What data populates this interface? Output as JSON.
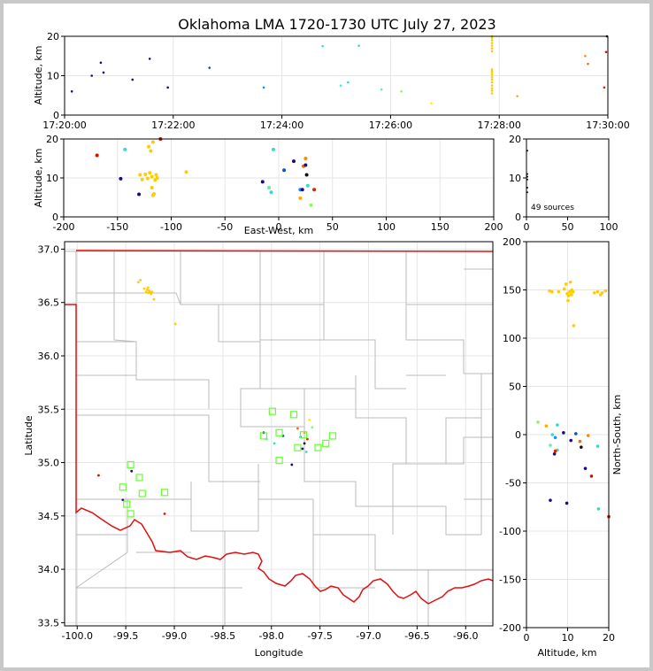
{
  "title": "Oklahoma LMA 1720-1730 UTC July 27, 2023",
  "colors": {
    "frame": "#c8c8c8",
    "state_border": "#e01010",
    "county": "#bbbbbb",
    "grid": "#e6e6e6",
    "station": "#66ff33"
  },
  "chart_data": [
    {
      "id": "time_height",
      "type": "scatter",
      "ylabel": "Altitude, km",
      "xlim_seconds": [
        0,
        600
      ],
      "ylim": [
        0,
        20
      ],
      "xticks": [
        "17:20:00",
        "17:22:00",
        "17:24:00",
        "17:26:00",
        "17:28:00",
        "17:30:00"
      ],
      "yticks": [
        "0",
        "10",
        "20"
      ],
      "points": [
        {
          "t": 8,
          "alt": 6,
          "color": "#1a0a8a"
        },
        {
          "t": 30,
          "alt": 10,
          "color": "#1a0a8a"
        },
        {
          "t": 40,
          "alt": 13.3,
          "color": "#1a0a8a"
        },
        {
          "t": 43,
          "alt": 10.8,
          "color": "#1a0a8a"
        },
        {
          "t": 75,
          "alt": 9,
          "color": "#1a0a8a"
        },
        {
          "t": 94,
          "alt": 14.3,
          "color": "#1a0a8a"
        },
        {
          "t": 114,
          "alt": 7,
          "color": "#1a0a8a"
        },
        {
          "t": 160,
          "alt": 12,
          "color": "#0055cc"
        },
        {
          "t": 220,
          "alt": 7,
          "color": "#0099ff"
        },
        {
          "t": 285,
          "alt": 17.5,
          "color": "#33dddd"
        },
        {
          "t": 305,
          "alt": 7.5,
          "color": "#33eedd"
        },
        {
          "t": 313,
          "alt": 8.3,
          "color": "#33ddcc"
        },
        {
          "t": 325,
          "alt": 17.6,
          "color": "#33ddbb"
        },
        {
          "t": 350,
          "alt": 6.5,
          "color": "#66ee99"
        },
        {
          "t": 372,
          "alt": 6,
          "color": "#99ee66"
        },
        {
          "t": 405,
          "alt": 3,
          "color": "#ffee00"
        },
        {
          "t": 500,
          "alt": 4.8,
          "color": "#ffaa00"
        },
        {
          "t": 575,
          "alt": 15,
          "color": "#ff8800"
        },
        {
          "t": 578,
          "alt": 13,
          "color": "#ff6600"
        },
        {
          "t": 596,
          "alt": 7,
          "color": "#dd2200"
        },
        {
          "t": 598,
          "alt": 16,
          "color": "#cc1100"
        },
        {
          "t": 599,
          "alt": 20,
          "color": "#111111"
        }
      ],
      "burst": {
        "t": 472,
        "alt_values": [
          5.5,
          6.2,
          6.8,
          7.5,
          8.3,
          9,
          9.6,
          10.2,
          10.8,
          11.2,
          11.6,
          16.2,
          16.9,
          17.6,
          18.3,
          19,
          19.6,
          20
        ],
        "color": "#ffcc00"
      }
    },
    {
      "id": "ew_height",
      "type": "scatter",
      "xlabel": "East-West, km",
      "ylabel": "Altitude, km",
      "xlim": [
        -200,
        200
      ],
      "ylim": [
        0,
        20
      ],
      "xticks": [
        "-200",
        "-150",
        "-100",
        "-50",
        "0",
        "50",
        "100",
        "150",
        "200"
      ],
      "yticks": [
        "0",
        "10",
        "20"
      ],
      "points": [
        {
          "x": -169,
          "y": 15.8,
          "color": "#cc1100"
        },
        {
          "x": -147,
          "y": 9.8,
          "color": "#1a0a8a"
        },
        {
          "x": -143,
          "y": 17.3,
          "color": "#33ddcc"
        },
        {
          "x": -130,
          "y": 5.8,
          "color": "#1a0a8a"
        },
        {
          "x": -129,
          "y": 10.8,
          "color": "#ffcc00"
        },
        {
          "x": -127,
          "y": 9.6,
          "color": "#ffcc00"
        },
        {
          "x": -124,
          "y": 10.9,
          "color": "#ffcc00"
        },
        {
          "x": -122,
          "y": 9.9,
          "color": "#ffcc00"
        },
        {
          "x": -121,
          "y": 18,
          "color": "#ffcc00"
        },
        {
          "x": -120,
          "y": 11.3,
          "color": "#ffcc00"
        },
        {
          "x": -119,
          "y": 16.9,
          "color": "#ffcc00"
        },
        {
          "x": -118,
          "y": 10.3,
          "color": "#ffcc00"
        },
        {
          "x": -117,
          "y": 19.2,
          "color": "#ffcc00"
        },
        {
          "x": -116,
          "y": 5.9,
          "color": "#ffcc00"
        },
        {
          "x": -115,
          "y": 9.5,
          "color": "#ffcc00"
        },
        {
          "x": -114,
          "y": 10.8,
          "color": "#ffcc00"
        },
        {
          "x": -113,
          "y": 10,
          "color": "#ffcc00"
        },
        {
          "x": -118,
          "y": 7.5,
          "color": "#ffcc00"
        },
        {
          "x": -117,
          "y": 5.5,
          "color": "#ffcc00"
        },
        {
          "x": -110,
          "y": 20,
          "color": "#cc1100"
        },
        {
          "x": -86,
          "y": 11.5,
          "color": "#ffcc00"
        },
        {
          "x": -15,
          "y": 9,
          "color": "#1a0a8a"
        },
        {
          "x": -9,
          "y": 7.5,
          "color": "#66ee99"
        },
        {
          "x": -7,
          "y": 6.3,
          "color": "#33ddcc"
        },
        {
          "x": -5,
          "y": 17.3,
          "color": "#33ddcc"
        },
        {
          "x": 5,
          "y": 12,
          "color": "#0055cc"
        },
        {
          "x": 14,
          "y": 14.3,
          "color": "#1a0a8a"
        },
        {
          "x": 20,
          "y": 7,
          "color": "#0099ff"
        },
        {
          "x": 20,
          "y": 4.8,
          "color": "#ffaa00"
        },
        {
          "x": 22,
          "y": 7,
          "color": "#1a0a8a"
        },
        {
          "x": 23,
          "y": 13,
          "color": "#ff6600"
        },
        {
          "x": 25,
          "y": 13.3,
          "color": "#1a0a8a"
        },
        {
          "x": 25,
          "y": 15,
          "color": "#ff8800"
        },
        {
          "x": 26,
          "y": 10.8,
          "color": "#111111"
        },
        {
          "x": 27,
          "y": 8,
          "color": "#33ddcc"
        },
        {
          "x": 30,
          "y": 3,
          "color": "#99ee66"
        },
        {
          "x": 33,
          "y": 7,
          "color": "#dd2200"
        }
      ]
    },
    {
      "id": "histogram",
      "type": "scatter",
      "xlim": [
        0,
        100
      ],
      "ylim": [
        0,
        20
      ],
      "xticks": [
        "0",
        "50",
        "100"
      ],
      "yticks": [
        "0",
        "10",
        "20"
      ],
      "sources_text": "49 sources",
      "points": [
        {
          "x": 1,
          "y": 17,
          "color": "#000000"
        },
        {
          "x": 1,
          "y": 11,
          "color": "#000000"
        },
        {
          "x": 1,
          "y": 10.3,
          "color": "#000000"
        },
        {
          "x": 1,
          "y": 9.6,
          "color": "#000000"
        },
        {
          "x": 1,
          "y": 7.5,
          "color": "#000000"
        },
        {
          "x": 1,
          "y": 6.3,
          "color": "#000000"
        }
      ]
    },
    {
      "id": "plan_view",
      "type": "scatter",
      "xlabel": "Longitude",
      "ylabel": "Latitude",
      "xlim": [
        -100.13,
        -95.72
      ],
      "ylim": [
        33.47,
        37.07
      ],
      "xticks": [
        "-100.0",
        "-99.5",
        "-99.0",
        "-98.5",
        "-98.0",
        "-97.5",
        "-97.0",
        "-96.5",
        "-96.0"
      ],
      "yticks": [
        "33.5",
        "34.0",
        "34.5",
        "35.0",
        "35.5",
        "36.0",
        "36.5",
        "37.0"
      ],
      "points": [
        {
          "lon": -99.37,
          "lat": 36.69,
          "color": "#ffcc00"
        },
        {
          "lon": -99.35,
          "lat": 36.71,
          "color": "#ffcc00"
        },
        {
          "lon": -99.31,
          "lat": 36.63,
          "color": "#ffcc00"
        },
        {
          "lon": -99.29,
          "lat": 36.6,
          "color": "#ffcc00"
        },
        {
          "lon": -99.28,
          "lat": 36.62,
          "color": "#ffcc00"
        },
        {
          "lon": -99.27,
          "lat": 36.59,
          "color": "#ffcc00"
        },
        {
          "lon": -99.26,
          "lat": 36.61,
          "color": "#ffcc00"
        },
        {
          "lon": -99.25,
          "lat": 36.6,
          "color": "#ffcc00"
        },
        {
          "lon": -99.24,
          "lat": 36.58,
          "color": "#ffcc00"
        },
        {
          "lon": -99.27,
          "lat": 36.64,
          "color": "#ffcc00"
        },
        {
          "lon": -99.23,
          "lat": 36.6,
          "color": "#ffcc00"
        },
        {
          "lon": -99.21,
          "lat": 36.53,
          "color": "#ffcc00"
        },
        {
          "lon": -98.99,
          "lat": 36.3,
          "color": "#ffcc00"
        },
        {
          "lon": -99.78,
          "lat": 34.88,
          "color": "#cc1100"
        },
        {
          "lon": -99.53,
          "lat": 34.65,
          "color": "#1a0a8a"
        },
        {
          "lon": -99.44,
          "lat": 34.92,
          "color": "#1a0a8a"
        },
        {
          "lon": -99.1,
          "lat": 34.52,
          "color": "#dd2200"
        },
        {
          "lon": -98.08,
          "lat": 35.28,
          "color": "#1a0a8a"
        },
        {
          "lon": -98.05,
          "lat": 35.22,
          "color": "#66ee99"
        },
        {
          "lon": -97.97,
          "lat": 35.18,
          "color": "#33ddcc"
        },
        {
          "lon": -97.88,
          "lat": 35.25,
          "color": "#0055cc"
        },
        {
          "lon": -97.79,
          "lat": 34.98,
          "color": "#1a0a8a"
        },
        {
          "lon": -97.73,
          "lat": 35.32,
          "color": "#ff6600"
        },
        {
          "lon": -97.7,
          "lat": 35.24,
          "color": "#0099ff"
        },
        {
          "lon": -97.68,
          "lat": 35.13,
          "color": "#1a0a8a"
        },
        {
          "lon": -97.66,
          "lat": 35.28,
          "color": "#ffaa00"
        },
        {
          "lon": -97.66,
          "lat": 35.18,
          "color": "#111111"
        },
        {
          "lon": -97.64,
          "lat": 35.1,
          "color": "#33ddcc"
        },
        {
          "lon": -97.63,
          "lat": 35.22,
          "color": "#dd2200"
        },
        {
          "lon": -97.61,
          "lat": 35.4,
          "color": "#ffee00"
        },
        {
          "lon": -97.58,
          "lat": 35.33,
          "color": "#99ee66"
        }
      ],
      "stations": [
        {
          "lon": -97.99,
          "lat": 35.48
        },
        {
          "lon": -97.77,
          "lat": 35.45
        },
        {
          "lon": -98.08,
          "lat": 35.25
        },
        {
          "lon": -97.92,
          "lat": 35.28
        },
        {
          "lon": -97.67,
          "lat": 35.26
        },
        {
          "lon": -97.37,
          "lat": 35.25
        },
        {
          "lon": -97.73,
          "lat": 35.14
        },
        {
          "lon": -97.52,
          "lat": 35.14
        },
        {
          "lon": -97.44,
          "lat": 35.18
        },
        {
          "lon": -97.92,
          "lat": 35.02
        },
        {
          "lon": -99.45,
          "lat": 34.98
        },
        {
          "lon": -99.36,
          "lat": 34.86
        },
        {
          "lon": -99.53,
          "lat": 34.77
        },
        {
          "lon": -99.33,
          "lat": 34.71
        },
        {
          "lon": -99.1,
          "lat": 34.72
        },
        {
          "lon": -99.49,
          "lat": 34.61
        },
        {
          "lon": -99.45,
          "lat": 34.52
        }
      ]
    },
    {
      "id": "ns_height",
      "type": "scatter",
      "xlabel": "Altitude, km",
      "ylabel": "North-South, km",
      "xlim": [
        0,
        20
      ],
      "ylim": [
        -200,
        200
      ],
      "xticks": [
        "0",
        "10",
        "20"
      ],
      "yticks": [
        "-200",
        "-150",
        "-100",
        "-50",
        "0",
        "50",
        "100",
        "150",
        "200"
      ],
      "points": [
        {
          "alt": 5.6,
          "ns": 149,
          "color": "#ffcc00"
        },
        {
          "alt": 6.2,
          "ns": 148,
          "color": "#ffcc00"
        },
        {
          "alt": 7.8,
          "ns": 148,
          "color": "#ffcc00"
        },
        {
          "alt": 9.2,
          "ns": 151,
          "color": "#ffcc00"
        },
        {
          "alt": 9.6,
          "ns": 156,
          "color": "#ffcc00"
        },
        {
          "alt": 9.9,
          "ns": 146,
          "color": "#ffcc00"
        },
        {
          "alt": 10.2,
          "ns": 144,
          "color": "#ffcc00"
        },
        {
          "alt": 10.5,
          "ns": 148,
          "color": "#ffcc00"
        },
        {
          "alt": 10.7,
          "ns": 158,
          "color": "#ffcc00"
        },
        {
          "alt": 10.9,
          "ns": 145,
          "color": "#ffcc00"
        },
        {
          "alt": 11.0,
          "ns": 150,
          "color": "#ffcc00"
        },
        {
          "alt": 10.1,
          "ns": 139,
          "color": "#ffcc00"
        },
        {
          "alt": 11.3,
          "ns": 148,
          "color": "#ffcc00"
        },
        {
          "alt": 11.5,
          "ns": 113,
          "color": "#ffcc00"
        },
        {
          "alt": 16.5,
          "ns": 147,
          "color": "#ffcc00"
        },
        {
          "alt": 17.3,
          "ns": 148,
          "color": "#ffcc00"
        },
        {
          "alt": 18.0,
          "ns": 145,
          "color": "#ffcc00"
        },
        {
          "alt": 18.4,
          "ns": 147,
          "color": "#ffcc00"
        },
        {
          "alt": 19.2,
          "ns": 149,
          "color": "#ffcc00"
        },
        {
          "alt": 2.8,
          "ns": 13,
          "color": "#99ee66"
        },
        {
          "alt": 4.8,
          "ns": 9,
          "color": "#ffaa00"
        },
        {
          "alt": 7.5,
          "ns": 10,
          "color": "#33ddcc"
        },
        {
          "alt": 5.8,
          "ns": -11,
          "color": "#66ee99"
        },
        {
          "alt": 6.3,
          "ns": 0,
          "color": "#33ddcc"
        },
        {
          "alt": 7.0,
          "ns": -3,
          "color": "#0099ff"
        },
        {
          "alt": 7.5,
          "ns": -16,
          "color": "#33ddcc"
        },
        {
          "alt": 6.8,
          "ns": -20,
          "color": "#1a0a8a"
        },
        {
          "alt": 7.0,
          "ns": -17,
          "color": "#dd2200"
        },
        {
          "alt": 9.0,
          "ns": 2,
          "color": "#1a0a8a"
        },
        {
          "alt": 10.8,
          "ns": -6,
          "color": "#1a0a8a"
        },
        {
          "alt": 12.0,
          "ns": 1,
          "color": "#0055cc"
        },
        {
          "alt": 13.0,
          "ns": -7,
          "color": "#ff6600"
        },
        {
          "alt": 13.3,
          "ns": -13,
          "color": "#111111"
        },
        {
          "alt": 15.0,
          "ns": -1,
          "color": "#ff8800"
        },
        {
          "alt": 14.3,
          "ns": -35,
          "color": "#1a0a8a"
        },
        {
          "alt": 15.8,
          "ns": -43,
          "color": "#cc1100"
        },
        {
          "alt": 17.3,
          "ns": -12,
          "color": "#33ddcc"
        },
        {
          "alt": 5.8,
          "ns": -68,
          "color": "#1a0a8a"
        },
        {
          "alt": 9.8,
          "ns": -71,
          "color": "#1a0a8a"
        },
        {
          "alt": 17.5,
          "ns": -77,
          "color": "#33ddbb"
        },
        {
          "alt": 20.0,
          "ns": -85,
          "color": "#cc1100"
        }
      ]
    }
  ]
}
